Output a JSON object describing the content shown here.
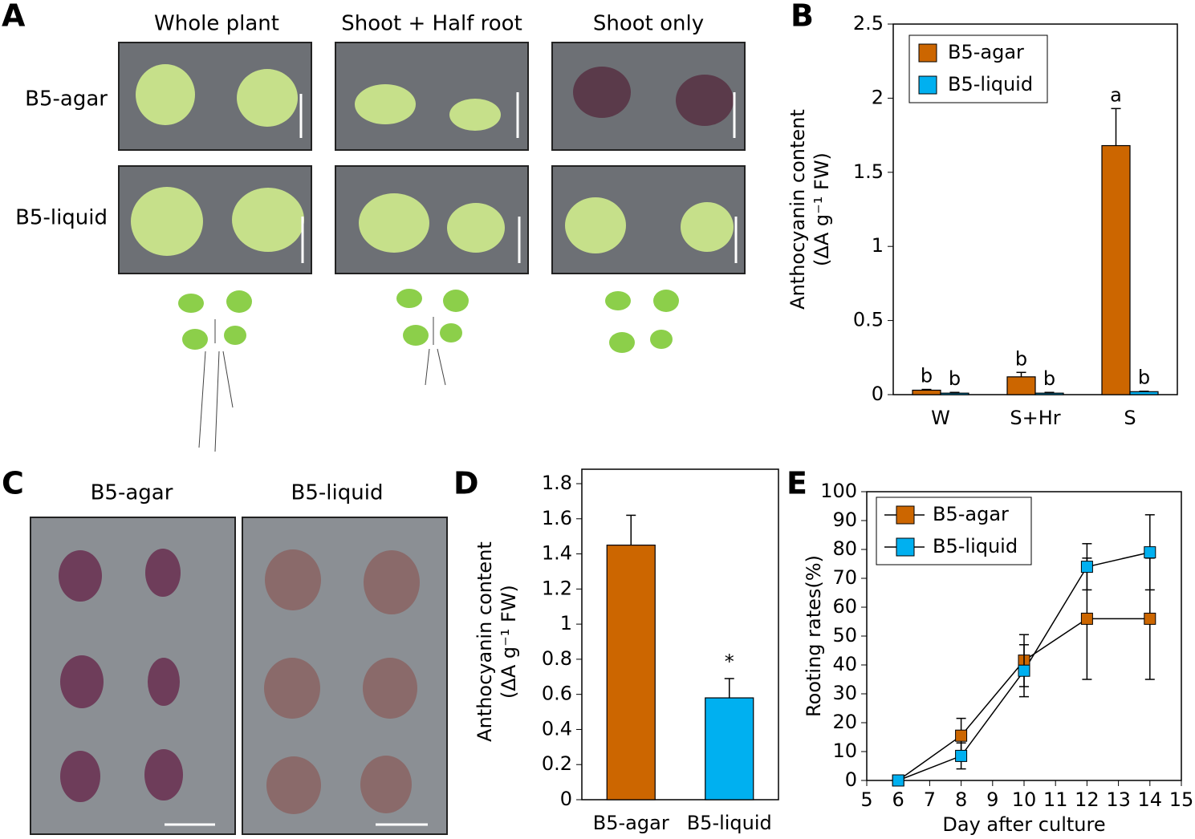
{
  "panel_letters": [
    "A",
    "B",
    "C",
    "D",
    "E"
  ],
  "panel_a": {
    "columns": [
      "Whole plant",
      "Shoot + Half root",
      "Shoot only"
    ],
    "rows": [
      "B5-agar",
      "B5-liquid"
    ]
  },
  "panel_c": {
    "columns": [
      "B5-agar",
      "B5-liquid"
    ]
  },
  "chart_data": [
    {
      "type": "bar",
      "categories": [
        "W",
        "S+Hr",
        "S"
      ],
      "series": [
        {
          "name": "B5-agar",
          "color": "#cc6600",
          "values": [
            0.03,
            0.12,
            1.68
          ],
          "errors": [
            0.005,
            0.03,
            0.25
          ],
          "letters": [
            "b",
            "b",
            "a"
          ]
        },
        {
          "name": "B5-liquid",
          "color": "#00b0f0",
          "values": [
            0.01,
            0.01,
            0.02
          ],
          "errors": [
            0.005,
            0.005,
            0.003
          ],
          "letters": [
            "b",
            "b",
            "b"
          ]
        }
      ],
      "y_label": [
        "Anthocyanin content",
        "(ΔA g⁻¹ FW)"
      ],
      "ylim": [
        0,
        2.5
      ],
      "yticks": [
        0,
        0.5,
        1,
        1.5,
        2,
        2.5
      ],
      "legend": "upper left"
    },
    {
      "type": "bar",
      "categories": [
        "B5-agar",
        "B5-liquid"
      ],
      "values": [
        1.45,
        0.58
      ],
      "errors": [
        0.17,
        0.11
      ],
      "colors": [
        "#cc6600",
        "#00b0f0"
      ],
      "significance": "*",
      "y_label": [
        "Anthocyanin content",
        "(ΔA g⁻¹ FW)"
      ],
      "ylim": [
        0,
        1.8
      ],
      "yticks": [
        0,
        0.2,
        0.4,
        0.6,
        0.8,
        1,
        1.2,
        1.4,
        1.6,
        1.8
      ]
    },
    {
      "type": "line",
      "x": [
        6,
        8,
        10,
        12,
        14
      ],
      "series": [
        {
          "name": "B5-agar",
          "color": "#cc6600",
          "values": [
            0,
            15.5,
            41.5,
            56,
            56
          ],
          "errors": [
            0,
            6,
            9,
            21,
            21
          ]
        },
        {
          "name": "B5-liquid",
          "color": "#00b0f0",
          "values": [
            0,
            8.5,
            38,
            74,
            79
          ],
          "errors": [
            0,
            4.5,
            9,
            8,
            13
          ]
        }
      ],
      "x_label": "Day after culture",
      "y_label": "Rooting rates(%)",
      "xlim": [
        5,
        15
      ],
      "xticks": [
        5,
        6,
        7,
        8,
        9,
        10,
        11,
        12,
        13,
        14,
        15
      ],
      "ylim": [
        0,
        100
      ],
      "yticks": [
        0,
        10,
        20,
        30,
        40,
        50,
        60,
        70,
        80,
        90,
        100
      ],
      "legend": "upper left"
    }
  ]
}
